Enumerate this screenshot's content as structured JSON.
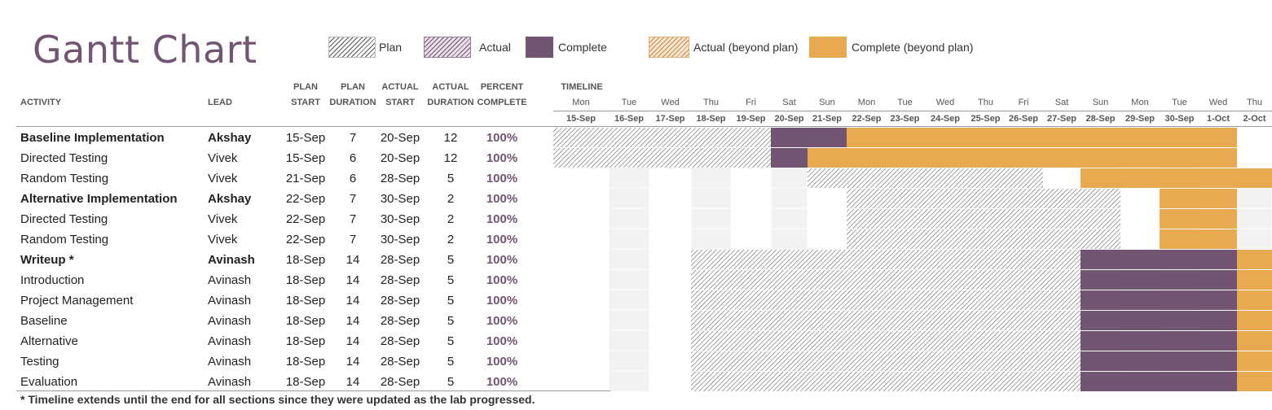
{
  "title": "Gantt Chart",
  "legend": [
    {
      "key": "plan",
      "label": "Plan"
    },
    {
      "key": "actual",
      "label": "Actual"
    },
    {
      "key": "complete",
      "label": "Complete"
    },
    {
      "key": "actual_beyond",
      "label": "Actual (beyond plan)"
    },
    {
      "key": "complete_beyond",
      "label": "Complete (beyond plan)"
    }
  ],
  "colors": {
    "accent": "#725573",
    "complete": "#725573",
    "complete_beyond": "#e8aa51",
    "weekend_shade": "#f2f2f2",
    "plan_hatch": "#555555"
  },
  "headers": {
    "activity": "ACTIVITY",
    "lead": "LEAD",
    "plan_start": [
      "PLAN",
      "START"
    ],
    "plan_duration": [
      "PLAN",
      "DURATION"
    ],
    "actual_start": [
      "ACTUAL",
      "START"
    ],
    "actual_duration": [
      "ACTUAL",
      "DURATION"
    ],
    "percent_complete": [
      "PERCENT",
      "COMPLETE"
    ],
    "timeline": "TIMELINE"
  },
  "chart_data": {
    "type": "table",
    "timeline": {
      "days": [
        "Mon",
        "Tue",
        "Wed",
        "Thu",
        "Fri",
        "Sat",
        "Sun",
        "Mon",
        "Tue",
        "Wed",
        "Thu",
        "Fri",
        "Sat",
        "Sun",
        "Mon",
        "Tue",
        "Wed",
        "Thu"
      ],
      "dates": [
        "15-Sep",
        "16-Sep",
        "17-Sep",
        "18-Sep",
        "19-Sep",
        "20-Sep",
        "21-Sep",
        "22-Sep",
        "23-Sep",
        "24-Sep",
        "25-Sep",
        "26-Sep",
        "27-Sep",
        "28-Sep",
        "29-Sep",
        "30-Sep",
        "1-Oct",
        "2-Oct"
      ]
    },
    "rows": [
      {
        "activity": "Baseline Implementation",
        "lead": "Akshay",
        "plan_start": "15-Sep",
        "plan_duration": "7",
        "actual_start": "20-Sep",
        "actual_duration": "12",
        "percent": "100%",
        "bold": true
      },
      {
        "activity": "Directed Testing",
        "lead": "Vivek",
        "plan_start": "15-Sep",
        "plan_duration": "6",
        "actual_start": "20-Sep",
        "actual_duration": "12",
        "percent": "100%",
        "bold": false
      },
      {
        "activity": "Random Testing",
        "lead": "Vivek",
        "plan_start": "21-Sep",
        "plan_duration": "6",
        "actual_start": "28-Sep",
        "actual_duration": "5",
        "percent": "100%",
        "bold": false
      },
      {
        "activity": "Alternative Implementation",
        "lead": "Akshay",
        "plan_start": "22-Sep",
        "plan_duration": "7",
        "actual_start": "30-Sep",
        "actual_duration": "2",
        "percent": "100%",
        "bold": true
      },
      {
        "activity": "Directed Testing",
        "lead": "Vivek",
        "plan_start": "22-Sep",
        "plan_duration": "7",
        "actual_start": "30-Sep",
        "actual_duration": "2",
        "percent": "100%",
        "bold": false
      },
      {
        "activity": "Random Testing",
        "lead": "Vivek",
        "plan_start": "22-Sep",
        "plan_duration": "7",
        "actual_start": "30-Sep",
        "actual_duration": "2",
        "percent": "100%",
        "bold": false
      },
      {
        "activity": "Writeup *",
        "lead": "Avinash",
        "plan_start": "18-Sep",
        "plan_duration": "14",
        "actual_start": "28-Sep",
        "actual_duration": "5",
        "percent": "100%",
        "bold": true
      },
      {
        "activity": "Introduction",
        "lead": "Avinash",
        "plan_start": "18-Sep",
        "plan_duration": "14",
        "actual_start": "28-Sep",
        "actual_duration": "5",
        "percent": "100%",
        "bold": false
      },
      {
        "activity": "Project Management",
        "lead": "Avinash",
        "plan_start": "18-Sep",
        "plan_duration": "14",
        "actual_start": "28-Sep",
        "actual_duration": "5",
        "percent": "100%",
        "bold": false
      },
      {
        "activity": "Baseline",
        "lead": "Avinash",
        "plan_start": "18-Sep",
        "plan_duration": "14",
        "actual_start": "28-Sep",
        "actual_duration": "5",
        "percent": "100%",
        "bold": false
      },
      {
        "activity": "Alternative",
        "lead": "Avinash",
        "plan_start": "18-Sep",
        "plan_duration": "14",
        "actual_start": "28-Sep",
        "actual_duration": "5",
        "percent": "100%",
        "bold": false
      },
      {
        "activity": "Testing",
        "lead": "Avinash",
        "plan_start": "18-Sep",
        "plan_duration": "14",
        "actual_start": "28-Sep",
        "actual_duration": "5",
        "percent": "100%",
        "bold": false
      },
      {
        "activity": "Evaluation",
        "lead": "Avinash",
        "plan_start": "18-Sep",
        "plan_duration": "14",
        "actual_start": "28-Sep",
        "actual_duration": "5",
        "percent": "100%",
        "bold": false
      }
    ],
    "bars": [
      {
        "row": 0,
        "segments": [
          {
            "kind": "plan",
            "start": "15-Sep",
            "end": "19-Sep"
          },
          {
            "kind": "complete",
            "start": "20-Sep",
            "end": "21-Sep"
          },
          {
            "kind": "complete_beyond",
            "start": "22-Sep",
            "end": "1-Oct"
          }
        ]
      },
      {
        "row": 1,
        "segments": [
          {
            "kind": "plan",
            "start": "15-Sep",
            "end": "19-Sep"
          },
          {
            "kind": "complete",
            "start": "20-Sep",
            "end": "20-Sep"
          },
          {
            "kind": "complete_beyond",
            "start": "21-Sep",
            "end": "1-Oct"
          }
        ]
      },
      {
        "row": 2,
        "segments": [
          {
            "kind": "plan",
            "start": "21-Sep",
            "end": "26-Sep"
          },
          {
            "kind": "complete_beyond",
            "start": "28-Sep",
            "end": "2-Oct"
          }
        ]
      },
      {
        "row": 3,
        "segments": [
          {
            "kind": "plan",
            "start": "22-Sep",
            "end": "28-Sep"
          },
          {
            "kind": "complete_beyond",
            "start": "30-Sep",
            "end": "1-Oct"
          }
        ]
      },
      {
        "row": 4,
        "segments": [
          {
            "kind": "plan",
            "start": "22-Sep",
            "end": "28-Sep"
          },
          {
            "kind": "complete_beyond",
            "start": "30-Sep",
            "end": "1-Oct"
          }
        ]
      },
      {
        "row": 5,
        "segments": [
          {
            "kind": "plan",
            "start": "22-Sep",
            "end": "28-Sep"
          },
          {
            "kind": "complete_beyond",
            "start": "30-Sep",
            "end": "1-Oct"
          }
        ]
      },
      {
        "row": 6,
        "segments": [
          {
            "kind": "plan",
            "start": "18-Sep",
            "end": "27-Sep"
          },
          {
            "kind": "complete",
            "start": "28-Sep",
            "end": "1-Oct"
          },
          {
            "kind": "complete_beyond",
            "start": "2-Oct",
            "end": "2-Oct"
          }
        ]
      },
      {
        "row": 7,
        "segments": [
          {
            "kind": "plan",
            "start": "18-Sep",
            "end": "27-Sep"
          },
          {
            "kind": "complete",
            "start": "28-Sep",
            "end": "1-Oct"
          },
          {
            "kind": "complete_beyond",
            "start": "2-Oct",
            "end": "2-Oct"
          }
        ]
      },
      {
        "row": 8,
        "segments": [
          {
            "kind": "plan",
            "start": "18-Sep",
            "end": "27-Sep"
          },
          {
            "kind": "complete",
            "start": "28-Sep",
            "end": "1-Oct"
          },
          {
            "kind": "complete_beyond",
            "start": "2-Oct",
            "end": "2-Oct"
          }
        ]
      },
      {
        "row": 9,
        "segments": [
          {
            "kind": "plan",
            "start": "18-Sep",
            "end": "27-Sep"
          },
          {
            "kind": "complete",
            "start": "28-Sep",
            "end": "1-Oct"
          },
          {
            "kind": "complete_beyond",
            "start": "2-Oct",
            "end": "2-Oct"
          }
        ]
      },
      {
        "row": 10,
        "segments": [
          {
            "kind": "plan",
            "start": "18-Sep",
            "end": "27-Sep"
          },
          {
            "kind": "complete",
            "start": "28-Sep",
            "end": "1-Oct"
          },
          {
            "kind": "complete_beyond",
            "start": "2-Oct",
            "end": "2-Oct"
          }
        ]
      },
      {
        "row": 11,
        "segments": [
          {
            "kind": "plan",
            "start": "18-Sep",
            "end": "27-Sep"
          },
          {
            "kind": "complete",
            "start": "28-Sep",
            "end": "1-Oct"
          },
          {
            "kind": "complete_beyond",
            "start": "2-Oct",
            "end": "2-Oct"
          }
        ]
      },
      {
        "row": 12,
        "segments": [
          {
            "kind": "plan",
            "start": "18-Sep",
            "end": "27-Sep"
          },
          {
            "kind": "complete",
            "start": "28-Sep",
            "end": "1-Oct"
          },
          {
            "kind": "complete_beyond",
            "start": "2-Oct",
            "end": "2-Oct"
          }
        ]
      }
    ]
  },
  "footnote": "* Timeline extends until the end for all sections since they were updated as the lab progressed."
}
